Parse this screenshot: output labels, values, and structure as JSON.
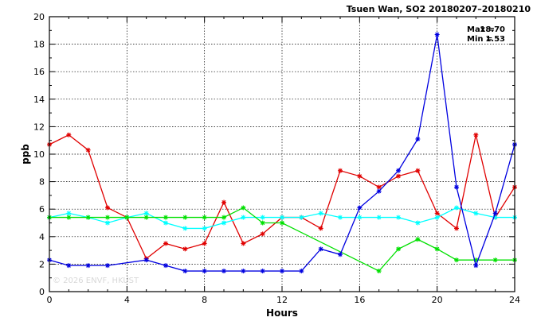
{
  "chart_data": {
    "type": "line",
    "title": "Tsuen Wan, SO2 20180207–20180210",
    "xlabel": "Hours",
    "ylabel": "ppb",
    "xlim": [
      0,
      24
    ],
    "ylim": [
      0,
      20
    ],
    "xticks": [
      0,
      4,
      8,
      12,
      16,
      20,
      24
    ],
    "yticks": [
      0,
      2,
      4,
      6,
      8,
      10,
      12,
      14,
      16,
      18,
      20
    ],
    "grid": true,
    "stats": {
      "max_label": "Max =",
      "max_value": "18.70",
      "min_label": "Min =",
      "min_value": "1.53"
    },
    "watermark": "© 2026 ENVF, HKUST",
    "series": [
      {
        "color": "#e00000",
        "points": [
          [
            0,
            10.7
          ],
          [
            1,
            11.4
          ],
          [
            2,
            10.3
          ],
          [
            3,
            6.1
          ],
          [
            4,
            5.4
          ],
          [
            5,
            2.4
          ],
          [
            6,
            3.5
          ],
          [
            7,
            3.1
          ],
          [
            8,
            3.5
          ],
          [
            9,
            6.5
          ],
          [
            10,
            3.5
          ],
          [
            11,
            4.2
          ],
          [
            12,
            5.4
          ],
          [
            13,
            5.4
          ],
          [
            14,
            4.6
          ],
          [
            15,
            8.8
          ],
          [
            16,
            8.4
          ],
          [
            17,
            7.6
          ],
          [
            18,
            8.4
          ],
          [
            19,
            8.8
          ],
          [
            20,
            5.7
          ],
          [
            21,
            4.6
          ],
          [
            22,
            11.4
          ],
          [
            23,
            5.4
          ],
          [
            24,
            7.6
          ]
        ]
      },
      {
        "color": "#00ffff",
        "points": [
          [
            0,
            5.4
          ],
          [
            1,
            5.7
          ],
          [
            2,
            5.4
          ],
          [
            3,
            5.0
          ],
          [
            4,
            5.4
          ],
          [
            5,
            5.7
          ],
          [
            6,
            5.0
          ],
          [
            7,
            4.6
          ],
          [
            8,
            4.6
          ],
          [
            9,
            5.0
          ],
          [
            10,
            5.4
          ],
          [
            11,
            5.4
          ],
          [
            12,
            5.4
          ],
          [
            13,
            5.4
          ],
          [
            14,
            5.7
          ],
          [
            15,
            5.4
          ],
          [
            16,
            5.4
          ],
          [
            17,
            5.4
          ],
          [
            18,
            5.4
          ],
          [
            19,
            5.0
          ],
          [
            20,
            5.4
          ],
          [
            21,
            6.1
          ],
          [
            22,
            5.7
          ],
          [
            23,
            5.4
          ],
          [
            24,
            5.4
          ]
        ]
      },
      {
        "color": "#00e000",
        "points": [
          [
            0,
            5.4
          ],
          [
            1,
            5.4
          ],
          [
            2,
            5.4
          ],
          [
            3,
            5.4
          ],
          [
            4,
            5.4
          ],
          [
            5,
            5.4
          ],
          [
            6,
            5.4
          ],
          [
            7,
            5.4
          ],
          [
            8,
            5.4
          ],
          [
            9,
            5.4
          ],
          [
            10,
            6.1
          ],
          [
            11,
            5.0
          ],
          [
            12,
            5.0
          ],
          [
            17,
            1.5
          ],
          [
            18,
            3.1
          ],
          [
            19,
            3.8
          ],
          [
            20,
            3.1
          ],
          [
            21,
            2.3
          ],
          [
            22,
            2.3
          ],
          [
            23,
            2.3
          ],
          [
            24,
            2.3
          ]
        ]
      },
      {
        "color": "#0000e0",
        "points": [
          [
            0,
            2.3
          ],
          [
            1,
            1.9
          ],
          [
            2,
            1.9
          ],
          [
            3,
            1.9
          ],
          [
            5,
            2.3
          ],
          [
            6,
            1.9
          ],
          [
            7,
            1.5
          ],
          [
            8,
            1.5
          ],
          [
            9,
            1.5
          ],
          [
            10,
            1.5
          ],
          [
            11,
            1.5
          ],
          [
            12,
            1.5
          ],
          [
            13,
            1.5
          ],
          [
            14,
            3.1
          ],
          [
            15,
            2.7
          ],
          [
            16,
            6.1
          ],
          [
            17,
            7.3
          ],
          [
            18,
            8.8
          ],
          [
            19,
            11.1
          ],
          [
            20,
            18.7
          ],
          [
            21,
            7.6
          ],
          [
            22,
            1.9
          ],
          [
            23,
            5.7
          ],
          [
            24,
            10.7
          ]
        ]
      }
    ]
  }
}
